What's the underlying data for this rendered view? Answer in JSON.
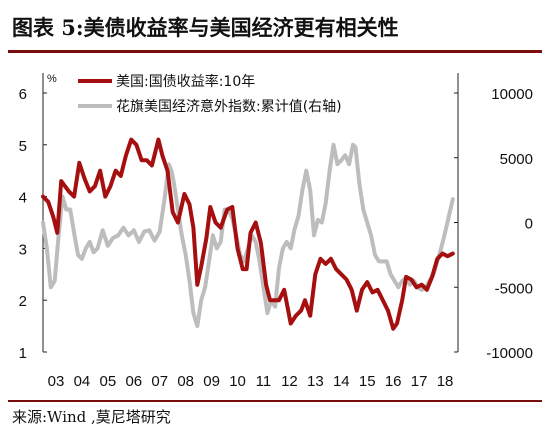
{
  "title": "图表 5:美债收益率与美国经济更有相关性",
  "source": "来源:Wind ,莫尼塔研究",
  "chart_data": {
    "type": "line",
    "y_left_unit": "%",
    "ylim_left": [
      1,
      6
    ],
    "yticks_left": [
      1,
      2,
      3,
      4,
      5,
      6
    ],
    "ylim_right": [
      -10000,
      10000
    ],
    "yticks_right": [
      "-10000",
      "-5000",
      "0",
      "5000",
      "10000"
    ],
    "xlim": [
      2003,
      2019
    ],
    "x_tick_labels": [
      "03",
      "04",
      "05",
      "06",
      "07",
      "08",
      "09",
      "10",
      "11",
      "12",
      "13",
      "14",
      "15",
      "16",
      "17",
      "18"
    ],
    "legend_placement": "top-left",
    "series": [
      {
        "name": "美国:国债收益率:10年",
        "axis": "left",
        "color": "#a50f0f",
        "points": [
          [
            2003.0,
            4.0
          ],
          [
            2003.2,
            3.9
          ],
          [
            2003.4,
            3.6
          ],
          [
            2003.55,
            3.3
          ],
          [
            2003.7,
            4.3
          ],
          [
            2003.85,
            4.2
          ],
          [
            2004.0,
            4.1
          ],
          [
            2004.2,
            4.0
          ],
          [
            2004.4,
            4.65
          ],
          [
            2004.6,
            4.35
          ],
          [
            2004.8,
            4.1
          ],
          [
            2005.0,
            4.2
          ],
          [
            2005.2,
            4.5
          ],
          [
            2005.4,
            4.0
          ],
          [
            2005.6,
            4.2
          ],
          [
            2005.8,
            4.5
          ],
          [
            2006.0,
            4.4
          ],
          [
            2006.2,
            4.8
          ],
          [
            2006.4,
            5.1
          ],
          [
            2006.6,
            5.0
          ],
          [
            2006.8,
            4.7
          ],
          [
            2007.0,
            4.7
          ],
          [
            2007.2,
            4.6
          ],
          [
            2007.45,
            5.1
          ],
          [
            2007.6,
            4.8
          ],
          [
            2007.8,
            4.5
          ],
          [
            2008.0,
            3.7
          ],
          [
            2008.2,
            3.5
          ],
          [
            2008.45,
            4.05
          ],
          [
            2008.65,
            3.85
          ],
          [
            2008.8,
            3.4
          ],
          [
            2008.95,
            2.3
          ],
          [
            2009.1,
            2.65
          ],
          [
            2009.3,
            3.2
          ],
          [
            2009.45,
            3.8
          ],
          [
            2009.65,
            3.5
          ],
          [
            2009.85,
            3.4
          ],
          [
            2010.1,
            3.75
          ],
          [
            2010.3,
            3.8
          ],
          [
            2010.5,
            3.0
          ],
          [
            2010.7,
            2.6
          ],
          [
            2010.85,
            2.6
          ],
          [
            2011.0,
            3.3
          ],
          [
            2011.2,
            3.5
          ],
          [
            2011.4,
            3.1
          ],
          [
            2011.6,
            2.3
          ],
          [
            2011.75,
            2.0
          ],
          [
            2011.9,
            2.0
          ],
          [
            2012.1,
            2.0
          ],
          [
            2012.3,
            2.2
          ],
          [
            2012.55,
            1.55
          ],
          [
            2012.75,
            1.7
          ],
          [
            2012.95,
            1.8
          ],
          [
            2013.1,
            2.0
          ],
          [
            2013.3,
            1.7
          ],
          [
            2013.5,
            2.5
          ],
          [
            2013.7,
            2.8
          ],
          [
            2013.9,
            2.7
          ],
          [
            2014.1,
            2.8
          ],
          [
            2014.3,
            2.6
          ],
          [
            2014.5,
            2.5
          ],
          [
            2014.7,
            2.4
          ],
          [
            2014.9,
            2.2
          ],
          [
            2015.1,
            1.8
          ],
          [
            2015.3,
            2.2
          ],
          [
            2015.5,
            2.35
          ],
          [
            2015.7,
            2.15
          ],
          [
            2015.9,
            2.2
          ],
          [
            2016.1,
            2.0
          ],
          [
            2016.3,
            1.8
          ],
          [
            2016.5,
            1.45
          ],
          [
            2016.65,
            1.55
          ],
          [
            2016.85,
            2.0
          ],
          [
            2017.0,
            2.45
          ],
          [
            2017.2,
            2.4
          ],
          [
            2017.4,
            2.25
          ],
          [
            2017.6,
            2.3
          ],
          [
            2017.8,
            2.2
          ],
          [
            2018.0,
            2.45
          ],
          [
            2018.2,
            2.8
          ],
          [
            2018.4,
            2.9
          ],
          [
            2018.6,
            2.85
          ],
          [
            2018.8,
            2.9
          ]
        ]
      },
      {
        "name": "花旗美国经济意外指数:累计值(右轴)",
        "axis": "right",
        "color": "#bdbdbd",
        "points": [
          [
            2003.0,
            0
          ],
          [
            2003.15,
            -2000
          ],
          [
            2003.3,
            -5000
          ],
          [
            2003.45,
            -4500
          ],
          [
            2003.6,
            -1000
          ],
          [
            2003.75,
            2000
          ],
          [
            2003.9,
            1000
          ],
          [
            2004.05,
            1000
          ],
          [
            2004.2,
            -800
          ],
          [
            2004.35,
            -2500
          ],
          [
            2004.5,
            -2800
          ],
          [
            2004.65,
            -2000
          ],
          [
            2004.8,
            -1500
          ],
          [
            2004.95,
            -2300
          ],
          [
            2005.1,
            -2000
          ],
          [
            2005.3,
            -600
          ],
          [
            2005.5,
            -1800
          ],
          [
            2005.7,
            -1200
          ],
          [
            2005.9,
            -1000
          ],
          [
            2006.1,
            -400
          ],
          [
            2006.3,
            -1000
          ],
          [
            2006.5,
            -600
          ],
          [
            2006.7,
            -1500
          ],
          [
            2006.9,
            -700
          ],
          [
            2007.1,
            -600
          ],
          [
            2007.3,
            -1400
          ],
          [
            2007.5,
            -700
          ],
          [
            2007.7,
            2000
          ],
          [
            2007.85,
            4500
          ],
          [
            2007.95,
            4000
          ],
          [
            2008.05,
            3000
          ],
          [
            2008.2,
            1000
          ],
          [
            2008.35,
            -1000
          ],
          [
            2008.5,
            -2500
          ],
          [
            2008.65,
            -4500
          ],
          [
            2008.8,
            -7000
          ],
          [
            2008.95,
            -8000
          ],
          [
            2009.1,
            -6000
          ],
          [
            2009.25,
            -5000
          ],
          [
            2009.4,
            -3000
          ],
          [
            2009.55,
            -1000
          ],
          [
            2009.7,
            -2000
          ],
          [
            2009.85,
            -1500
          ],
          [
            2010.0,
            1000
          ],
          [
            2010.15,
            1000
          ],
          [
            2010.3,
            300
          ],
          [
            2010.45,
            -1000
          ],
          [
            2010.6,
            -2500
          ],
          [
            2010.75,
            -3000
          ],
          [
            2010.9,
            -2000
          ],
          [
            2011.05,
            -1000
          ],
          [
            2011.2,
            -1500
          ],
          [
            2011.35,
            -3000
          ],
          [
            2011.5,
            -5000
          ],
          [
            2011.65,
            -7000
          ],
          [
            2011.8,
            -6000
          ],
          [
            2011.95,
            -6500
          ],
          [
            2012.1,
            -3500
          ],
          [
            2012.25,
            -2000
          ],
          [
            2012.4,
            -1500
          ],
          [
            2012.55,
            -2000
          ],
          [
            2012.7,
            -500
          ],
          [
            2012.85,
            500
          ],
          [
            2013.0,
            2500
          ],
          [
            2013.15,
            4000
          ],
          [
            2013.3,
            2500
          ],
          [
            2013.45,
            -1000
          ],
          [
            2013.6,
            200
          ],
          [
            2013.75,
            0
          ],
          [
            2013.9,
            1500
          ],
          [
            2014.05,
            4000
          ],
          [
            2014.2,
            6000
          ],
          [
            2014.35,
            4500
          ],
          [
            2014.5,
            4800
          ],
          [
            2014.65,
            5200
          ],
          [
            2014.8,
            4500
          ],
          [
            2014.95,
            6000
          ],
          [
            2015.05,
            5800
          ],
          [
            2015.2,
            3000
          ],
          [
            2015.35,
            1000
          ],
          [
            2015.5,
            0
          ],
          [
            2015.65,
            -1000
          ],
          [
            2015.8,
            -2500
          ],
          [
            2015.95,
            -3000
          ],
          [
            2016.1,
            -3000
          ],
          [
            2016.25,
            -3000
          ],
          [
            2016.4,
            -4000
          ],
          [
            2016.55,
            -4500
          ],
          [
            2016.7,
            -5000
          ],
          [
            2016.85,
            -4500
          ],
          [
            2017.0,
            -4300
          ],
          [
            2017.15,
            -4800
          ],
          [
            2017.3,
            -4500
          ],
          [
            2017.45,
            -5000
          ],
          [
            2017.6,
            -5200
          ],
          [
            2017.75,
            -5000
          ],
          [
            2017.9,
            -4500
          ],
          [
            2018.05,
            -4000
          ],
          [
            2018.2,
            -3000
          ],
          [
            2018.35,
            -2000
          ],
          [
            2018.5,
            -800
          ],
          [
            2018.65,
            500
          ],
          [
            2018.8,
            1800
          ]
        ]
      }
    ]
  }
}
